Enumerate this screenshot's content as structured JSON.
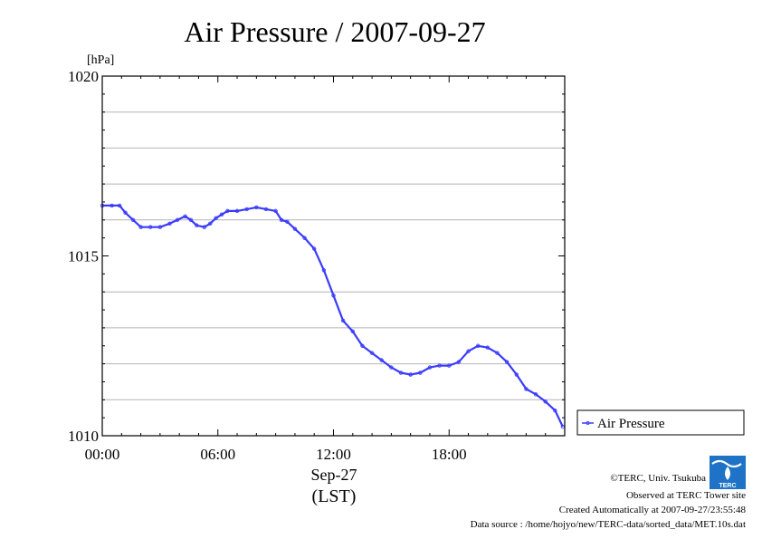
{
  "chart_data": {
    "type": "line",
    "title": "Air Pressure / 2007-09-27",
    "y_unit": "[hPa]",
    "xlabel": [
      "Sep-27",
      "(LST)"
    ],
    "ylim": [
      1010,
      1020
    ],
    "xlim": [
      0,
      24
    ],
    "y_ticks": [
      {
        "value": 1010,
        "label": "1010"
      },
      {
        "value": 1015,
        "label": "1015"
      },
      {
        "value": 1020,
        "label": "1020"
      }
    ],
    "y_grid": [
      1011,
      1012,
      1013,
      1014,
      1016,
      1017,
      1018,
      1019
    ],
    "x_ticks": [
      {
        "value": 0,
        "label": "00:00"
      },
      {
        "value": 6,
        "label": "06:00"
      },
      {
        "value": 12,
        "label": "12:00"
      },
      {
        "value": 18,
        "label": "18:00"
      }
    ],
    "grid": true,
    "legend_position": "right-bottom outside",
    "series": [
      {
        "name": "Air Pressure",
        "color": "#3a3aff",
        "x": [
          0,
          0.5,
          0.9,
          1.2,
          1.6,
          2.0,
          2.5,
          3.0,
          3.5,
          3.9,
          4.3,
          4.6,
          4.9,
          5.3,
          5.6,
          5.9,
          6.2,
          6.5,
          7.0,
          7.5,
          8.0,
          8.5,
          9.0,
          9.3,
          9.6,
          10.0,
          10.5,
          11.0,
          11.5,
          12.0,
          12.5,
          13.0,
          13.5,
          14.0,
          14.5,
          15.0,
          15.5,
          16.0,
          16.5,
          17.0,
          17.5,
          18.0,
          18.5,
          19.0,
          19.5,
          20.0,
          20.5,
          21.0,
          21.5,
          22.0,
          22.5,
          23.0,
          23.5,
          23.9
        ],
        "y": [
          1016.4,
          1016.4,
          1016.4,
          1016.2,
          1016.0,
          1015.8,
          1015.8,
          1015.8,
          1015.9,
          1016.0,
          1016.1,
          1016.0,
          1015.85,
          1015.8,
          1015.9,
          1016.05,
          1016.15,
          1016.25,
          1016.25,
          1016.3,
          1016.35,
          1016.3,
          1016.25,
          1016.0,
          1015.95,
          1015.75,
          1015.5,
          1015.2,
          1014.6,
          1013.9,
          1013.2,
          1012.9,
          1012.5,
          1012.3,
          1012.1,
          1011.9,
          1011.75,
          1011.7,
          1011.75,
          1011.9,
          1011.95,
          1011.95,
          1012.05,
          1012.35,
          1012.5,
          1012.45,
          1012.3,
          1012.05,
          1011.7,
          1011.3,
          1011.15,
          1010.95,
          1010.7,
          1010.25
        ]
      }
    ]
  },
  "credits": [
    "©TERC, Univ. Tsukuba",
    "Observed at TERC Tower site",
    "Created Automatically at 2007-09-27/23:55:48",
    "Data source : /home/hojyo/new/TERC-data/sorted_data/MET.10s.dat"
  ],
  "logo_text": "TERC"
}
